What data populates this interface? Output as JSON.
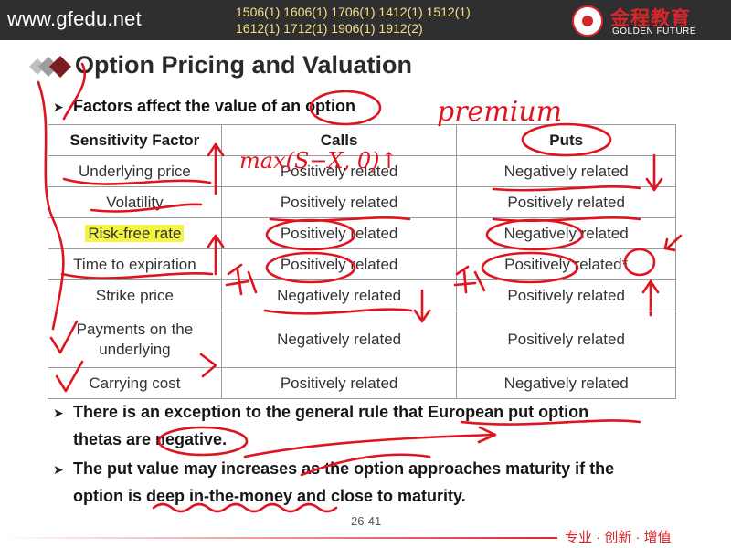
{
  "header": {
    "site": "www.gfedu.net",
    "codes_line1": "1506(1) 1606(1) 1706(1) 1412(1) 1512(1)",
    "codes_line2": "1612(1) 1712(1) 1906(1) 1912(2)",
    "brand_cn": "金程教育",
    "brand_en": "GOLDEN FUTURE"
  },
  "title": "Option Pricing and Valuation",
  "intro": "Factors affect the value of an option",
  "table": {
    "headers": [
      "Sensitivity Factor",
      "Calls",
      "Puts"
    ],
    "rows": [
      [
        "Underlying price",
        "Positively related",
        "Negatively related"
      ],
      [
        "Volatility",
        "Positively related",
        "Positively related"
      ],
      [
        "Risk-free rate",
        "Positively related",
        "Negatively related"
      ],
      [
        "Time to expiration",
        "Positively related",
        "Positively related*"
      ],
      [
        "Strike price",
        "Negatively related",
        "Positively related"
      ],
      [
        "Payments on the underlying",
        "Negatively related",
        "Positively related"
      ],
      [
        "Carrying cost",
        "Positively related",
        "Negatively related"
      ]
    ]
  },
  "bullets": {
    "b2_line1": "There is an exception to the general rule that European put option",
    "b2_line2": "thetas are negative.",
    "b3_line1": "The put value may increases as the option approaches maturity if the",
    "b3_line2": "option is deep in-the-money and close to maturity."
  },
  "page_number": "26-41",
  "footer": {
    "slogan": "专业 · 创新 · 增值"
  },
  "annotations": {
    "premium": "premium",
    "formula": "max(S−X, 0)↑",
    "ink_color": "#e0141e",
    "highlight_color": "#f3f542"
  }
}
